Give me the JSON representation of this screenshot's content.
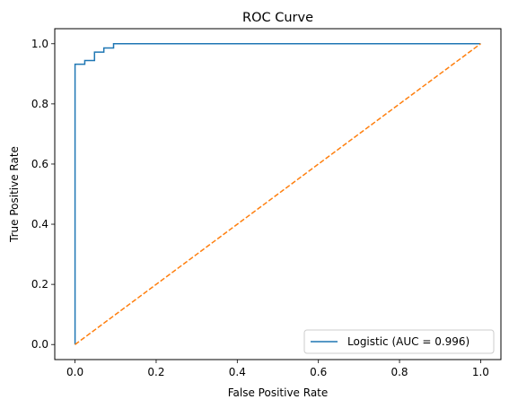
{
  "chart_data": {
    "type": "line",
    "title": "ROC Curve",
    "xlabel": "False Positive Rate",
    "ylabel": "True Positive Rate",
    "xlim": [
      -0.05,
      1.05
    ],
    "ylim": [
      -0.05,
      1.05
    ],
    "xticks": [
      0.0,
      0.2,
      0.4,
      0.6,
      0.8,
      1.0
    ],
    "xtick_labels": [
      "0.0",
      "0.2",
      "0.4",
      "0.6",
      "0.8",
      "1.0"
    ],
    "yticks": [
      0.0,
      0.2,
      0.4,
      0.6,
      0.8,
      1.0
    ],
    "ytick_labels": [
      "0.0",
      "0.2",
      "0.4",
      "0.6",
      "0.8",
      "1.0"
    ],
    "grid": false,
    "legend_position": "lower-right",
    "series": [
      {
        "name": "Logistic (AUC = 0.996)",
        "color": "#1f77b4",
        "style": "solid",
        "x": [
          0.0,
          0.0,
          0.0,
          0.024,
          0.024,
          0.048,
          0.048,
          0.071,
          0.071,
          0.095,
          0.095,
          1.0
        ],
        "y": [
          0.0,
          0.932,
          0.932,
          0.932,
          0.944,
          0.944,
          0.972,
          0.972,
          0.986,
          0.986,
          1.0,
          1.0
        ]
      },
      {
        "color": "#ff7f0e",
        "style": "dashed",
        "x": [
          0.0,
          1.0
        ],
        "y": [
          0.0,
          1.0
        ]
      }
    ]
  }
}
